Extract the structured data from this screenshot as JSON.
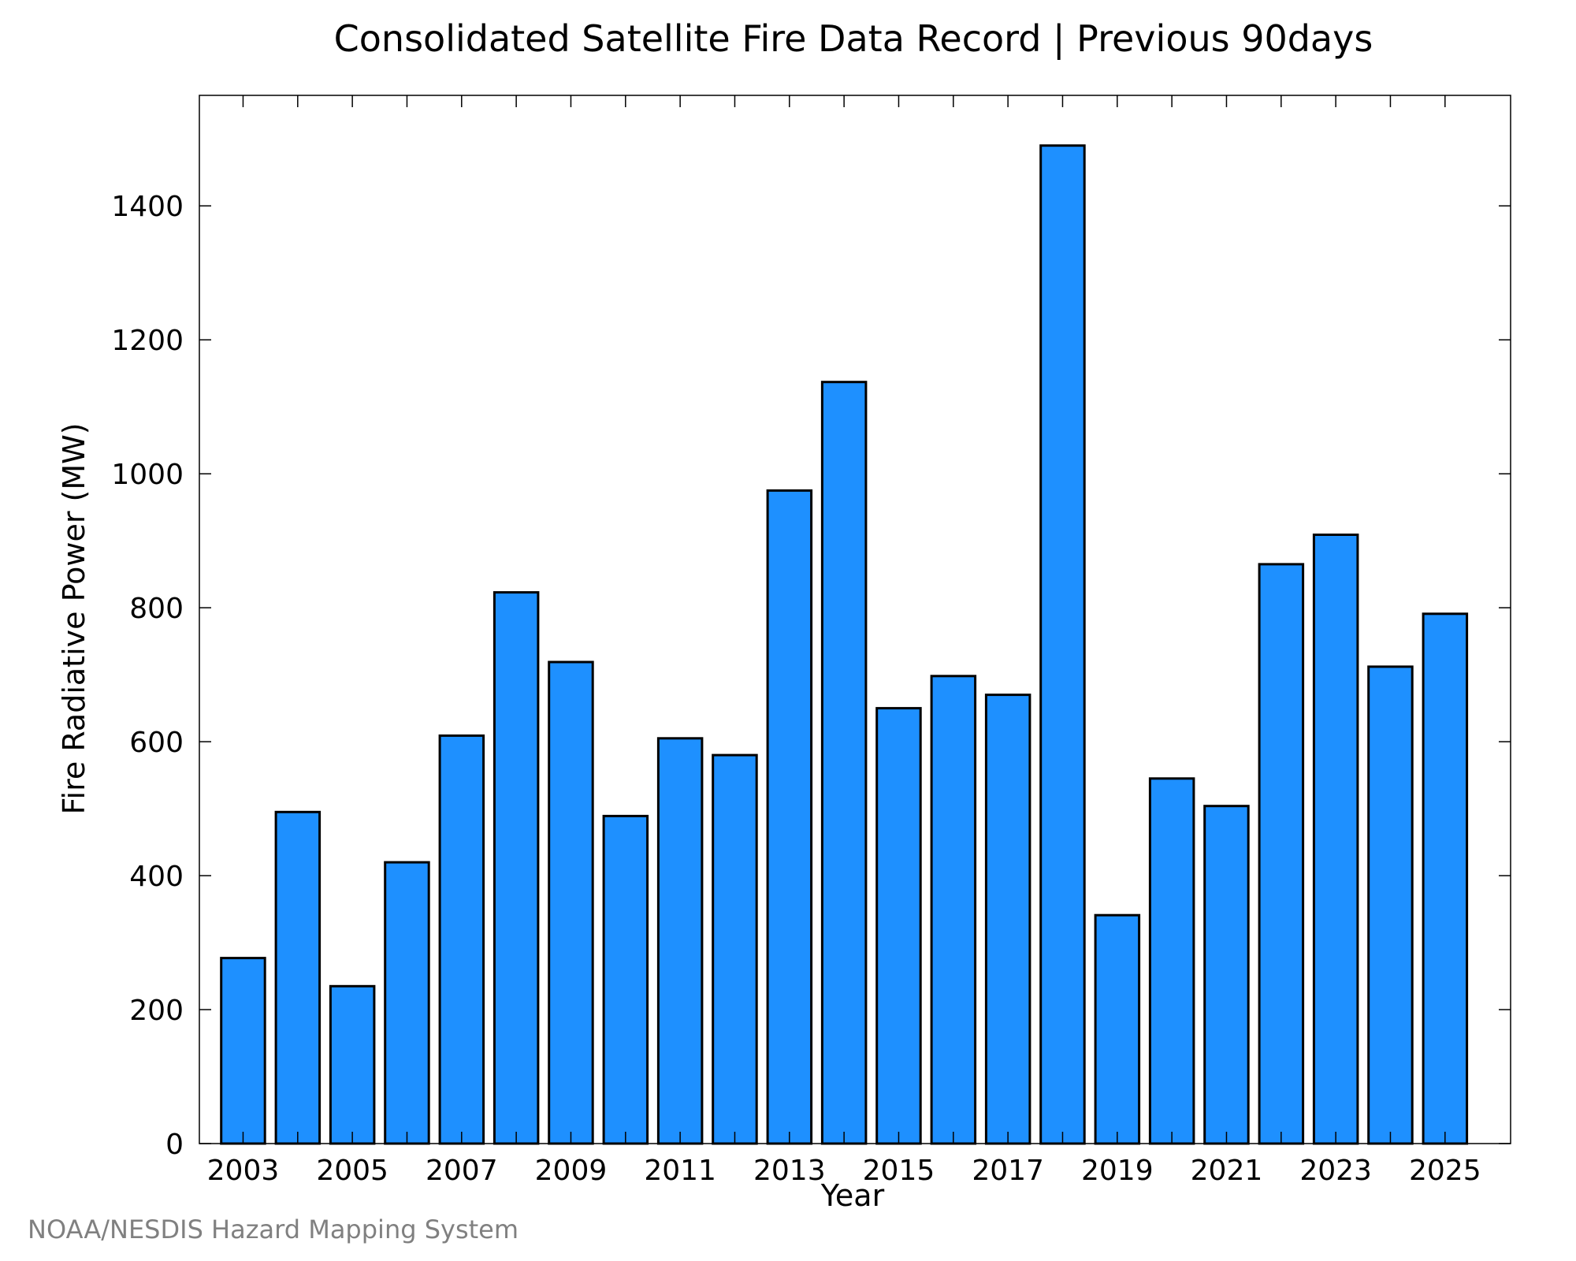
{
  "chart_data": {
    "type": "bar",
    "title": "Consolidated Satellite Fire Data Record | Previous 90days",
    "xlabel": "Year",
    "ylabel": "Fire Radiative Power (MW)",
    "credit": "NOAA/NESDIS Hazard Mapping System",
    "categories": [
      "2003",
      "2004",
      "2005",
      "2006",
      "2007",
      "2008",
      "2009",
      "2010",
      "2011",
      "2012",
      "2013",
      "2014",
      "2015",
      "2016",
      "2017",
      "2018",
      "2019",
      "2020",
      "2021",
      "2022",
      "2023",
      "2024",
      "2025"
    ],
    "values": [
      277,
      495,
      235,
      420,
      609,
      823,
      719,
      489,
      605,
      580,
      975,
      1137,
      650,
      698,
      670,
      1490,
      341,
      545,
      504,
      865,
      909,
      712,
      791
    ],
    "x_tick_labels": [
      "2003",
      "2005",
      "2007",
      "2009",
      "2011",
      "2013",
      "2015",
      "2017",
      "2019",
      "2021",
      "2023",
      "2025"
    ],
    "y_tick_labels": [
      "0",
      "200",
      "400",
      "600",
      "800",
      "1000",
      "1200",
      "1400"
    ],
    "y_ticks": [
      0,
      200,
      400,
      600,
      800,
      1000,
      1200,
      1400
    ],
    "ylim": [
      0,
      1565
    ],
    "xlim": [
      2002.2,
      2026.2
    ],
    "grid": false,
    "bar_color": "#1e90ff",
    "bar_edge_color": "#000000"
  }
}
